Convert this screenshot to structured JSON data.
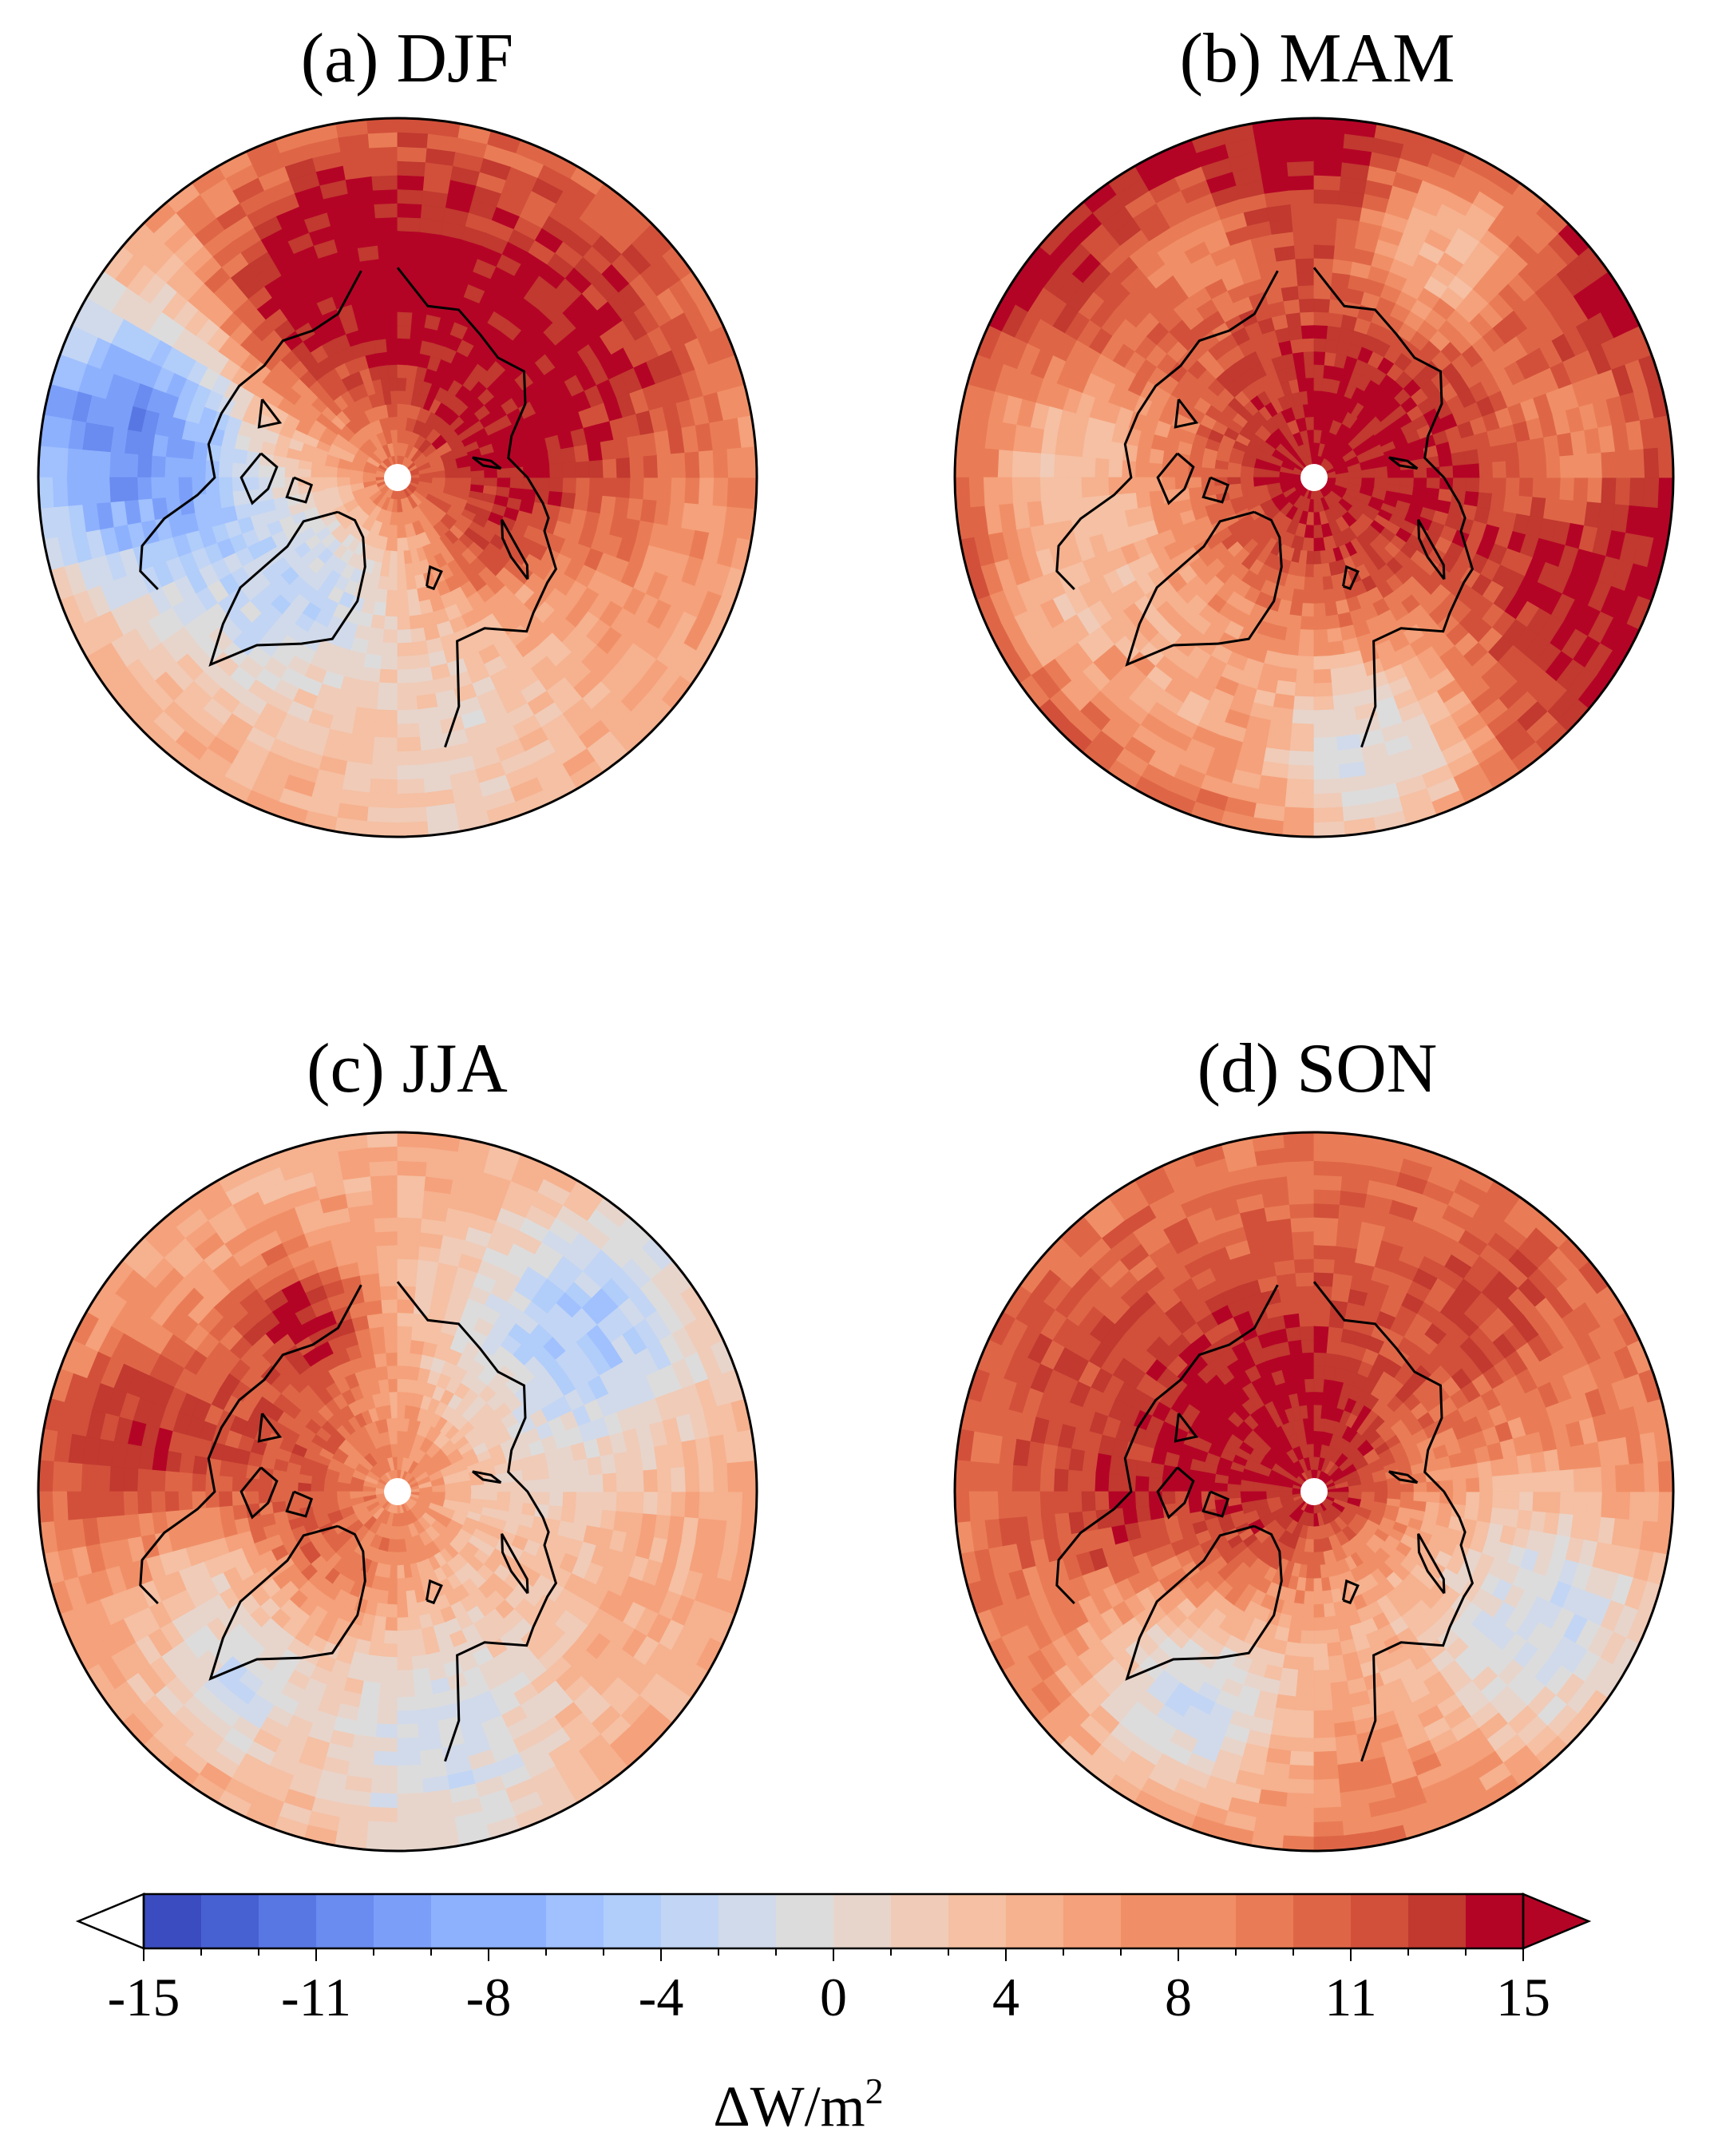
{
  "chart_data": {
    "type": "heatmap",
    "projection": "north-polar-stereographic",
    "panels": [
      {
        "id": "a",
        "title": "(a) DJF",
        "field": {
          "base": 5.5,
          "zonal": [
            {
              "lon": 40,
              "amp": 7,
              "width": 55
            },
            {
              "lon": 95,
              "amp": 7,
              "width": 50
            }
          ],
          "regions": [
            {
              "lon": 130,
              "lat": 72,
              "val": 15,
              "r": 18
            },
            {
              "lon": 175,
              "lat": 67,
              "val": 14,
              "r": 12
            },
            {
              "lon": -90,
              "lat": 65,
              "val": -6,
              "r": 10
            },
            {
              "lon": -100,
              "lat": 58,
              "val": -10,
              "r": 10
            },
            {
              "lon": -40,
              "lat": 72,
              "val": -4,
              "r": 9
            },
            {
              "lon": -160,
              "lat": 66,
              "val": 15,
              "r": 10
            },
            {
              "lon": 10,
              "lat": 60,
              "val": 1,
              "r": 10
            }
          ]
        }
      },
      {
        "id": "b",
        "title": "(b) MAM",
        "field": {
          "base": 15,
          "zonal": [],
          "regions": [
            {
              "lon": -95,
              "lat": 62,
              "val": 4,
              "r": 10
            },
            {
              "lon": -60,
              "lat": 62,
              "val": 3,
              "r": 9
            },
            {
              "lon": 10,
              "lat": 58,
              "val": -1,
              "r": 11
            },
            {
              "lon": -30,
              "lat": 60,
              "val": 5,
              "r": 7
            },
            {
              "lon": 100,
              "lat": 60,
              "val": 8,
              "r": 7
            },
            {
              "lon": 150,
              "lat": 60,
              "val": 4,
              "r": 8
            },
            {
              "lon": -150,
              "lat": 62,
              "val": 8,
              "r": 7
            }
          ]
        }
      },
      {
        "id": "c",
        "title": "(c) JJA",
        "field": {
          "base": 5,
          "zonal": [],
          "regions": [
            {
              "lon": 130,
              "lat": 62,
              "val": -5,
              "r": 10
            },
            {
              "lon": 10,
              "lat": 60,
              "val": -2,
              "r": 10
            },
            {
              "lon": -80,
              "lat": 72,
              "val": 15,
              "r": 10
            },
            {
              "lon": -100,
              "lat": 60,
              "val": 14,
              "r": 9
            },
            {
              "lon": -60,
              "lat": 65,
              "val": 3,
              "r": 8
            },
            {
              "lon": -150,
              "lat": 68,
              "val": 14,
              "r": 6
            },
            {
              "lon": -40,
              "lat": 62,
              "val": -3,
              "r": 5
            }
          ]
        }
      },
      {
        "id": "d",
        "title": "(d) SON",
        "field": {
          "base": 9,
          "zonal": [],
          "regions": [
            {
              "lon": -170,
              "lat": 82,
              "val": 15,
              "r": 12
            },
            {
              "lon": -120,
              "lat": 72,
              "val": 15,
              "r": 9
            },
            {
              "lon": -80,
              "lat": 74,
              "val": 15,
              "r": 9
            },
            {
              "lon": 60,
              "lat": 60,
              "val": -2,
              "r": 11
            },
            {
              "lon": -30,
              "lat": 62,
              "val": -2,
              "r": 9
            },
            {
              "lon": -110,
              "lat": 60,
              "val": 12,
              "r": 8
            },
            {
              "lon": 140,
              "lat": 62,
              "val": 12,
              "r": 8
            }
          ]
        }
      }
    ],
    "colorbar": {
      "label_prefix": "ΔW/m",
      "label_sup": "2",
      "range": [
        -15,
        15
      ],
      "levels": 24,
      "tick_labels": [
        "-15",
        "-11",
        "-8",
        "-4",
        "0",
        "4",
        "8",
        "11",
        "15"
      ],
      "tick_values": [
        -15,
        -11.25,
        -7.5,
        -3.75,
        0,
        3.75,
        7.5,
        11.25,
        15
      ],
      "extend": "both",
      "colormap": "coolwarm",
      "colors": [
        "#3b4cc0",
        "#4861d2",
        "#5977e3",
        "#6a8bef",
        "#7b9ff9",
        "#8eb1fe",
        "#a0c0fe",
        "#b1cdfa",
        "#c2d5f4",
        "#d1daea",
        "#dddcdc",
        "#e7d5cc",
        "#f0cbb8",
        "#f5c0a3",
        "#f6b18f",
        "#f5a17b",
        "#f08f67",
        "#e97c56",
        "#de6647",
        "#d2503a",
        "#c1392f",
        "#b40426"
      ],
      "over_color": "#b40426",
      "under_color": "#ffffff"
    }
  }
}
